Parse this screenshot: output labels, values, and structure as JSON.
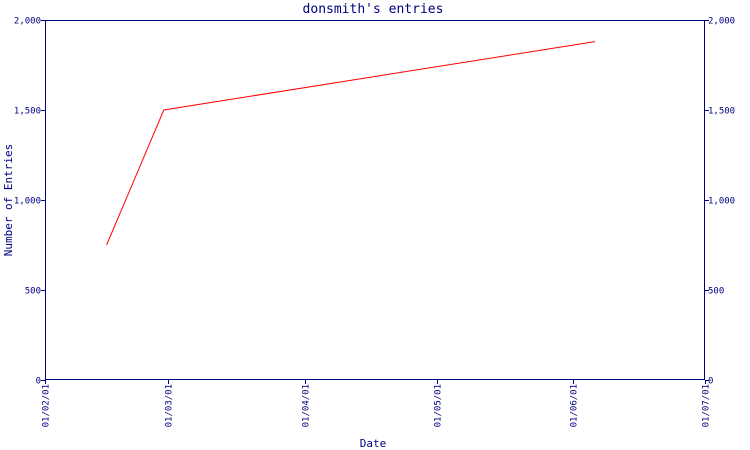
{
  "chart_data": {
    "type": "line",
    "title": "donsmith's entries",
    "xlabel": "Date",
    "ylabel": "Number of Entries",
    "x_ticks": [
      "01/02/01",
      "01/03/01",
      "01/04/01",
      "01/05/01",
      "01/06/01",
      "01/07/01"
    ],
    "x_range": [
      "2001-02-01",
      "2001-07-01"
    ],
    "y_ticks": [
      "0",
      "500",
      "1,000",
      "1,500",
      "2,000"
    ],
    "ylim": [
      0,
      2000
    ],
    "right_axis_mirrors_left": true,
    "grid": false,
    "series": [
      {
        "color": "#ff0000",
        "x": [
          "2001-02-15",
          "2001-02-28",
          "2001-06-06"
        ],
        "y": [
          750,
          1500,
          1880
        ]
      }
    ]
  }
}
